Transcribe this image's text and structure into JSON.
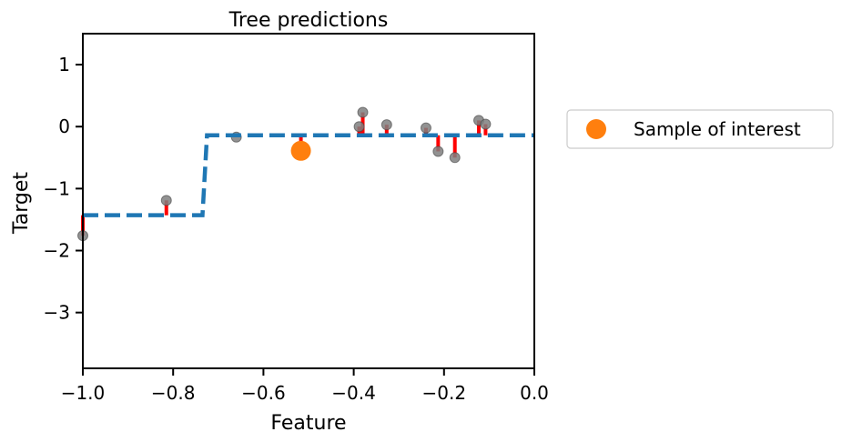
{
  "chart_data": {
    "type": "scatter",
    "title": "Tree predictions",
    "xlabel": "Feature",
    "ylabel": "Target",
    "xlim": [
      -1.0,
      0.0
    ],
    "ylim": [
      -3.9,
      1.5
    ],
    "xticks": [
      -1.0,
      -0.8,
      -0.6,
      -0.4,
      -0.2,
      0.0
    ],
    "xtick_labels": [
      "−1.0",
      "−0.8",
      "−0.6",
      "−0.4",
      "−0.2",
      "0.0"
    ],
    "yticks": [
      1,
      0,
      -1,
      -2,
      -3
    ],
    "ytick_labels": [
      "1",
      "0",
      "−1",
      "−2",
      "−3"
    ],
    "grid": false,
    "colors": {
      "prediction": "#1f77b4",
      "points": "#7f7f7f",
      "residuals": "#ff0000",
      "highlight": "#ff7f0e"
    },
    "prediction_line": {
      "style": "dashed",
      "x": [
        -1.0,
        -0.735,
        -0.725,
        0.0
      ],
      "y": [
        -1.43,
        -1.43,
        -0.14,
        -0.14
      ]
    },
    "points": [
      {
        "x": -1.0,
        "y": -1.76,
        "pred": -1.43
      },
      {
        "x": -0.815,
        "y": -1.19,
        "pred": -1.43
      },
      {
        "x": -0.66,
        "y": -0.17,
        "pred": -0.14
      },
      {
        "x": -0.388,
        "y": 0.0,
        "pred": -0.14
      },
      {
        "x": -0.38,
        "y": 0.23,
        "pred": -0.14
      },
      {
        "x": -0.327,
        "y": 0.03,
        "pred": -0.14
      },
      {
        "x": -0.24,
        "y": -0.02,
        "pred": -0.14
      },
      {
        "x": -0.213,
        "y": -0.4,
        "pred": -0.14
      },
      {
        "x": -0.176,
        "y": -0.5,
        "pred": -0.14
      },
      {
        "x": -0.123,
        "y": 0.1,
        "pred": -0.14
      },
      {
        "x": -0.108,
        "y": 0.04,
        "pred": -0.14
      }
    ],
    "sample_of_interest": {
      "x": -0.517,
      "y": -0.39,
      "pred": -0.14
    },
    "legend": {
      "entries": [
        "Sample of interest"
      ],
      "placement": "outside right"
    }
  }
}
